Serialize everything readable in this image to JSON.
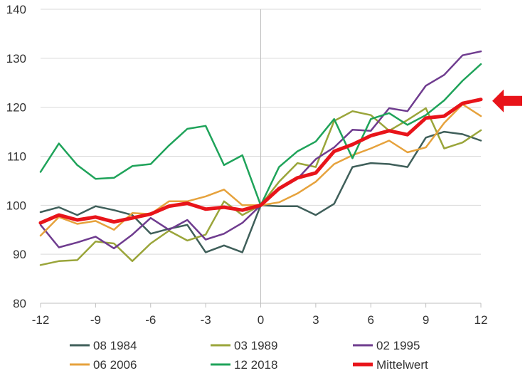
{
  "chart_data": {
    "type": "line",
    "title": "",
    "xlabel": "",
    "ylabel": "",
    "xlim": [
      -12,
      12
    ],
    "ylim": [
      80,
      140
    ],
    "x_ticks": [
      -12,
      -9,
      -6,
      -3,
      0,
      3,
      6,
      9,
      12
    ],
    "y_ticks": [
      80,
      90,
      100,
      110,
      120,
      130,
      140
    ],
    "x_tick_labels": [
      "-12",
      "-9",
      "-6",
      "-3",
      "0",
      "3",
      "6",
      "9",
      "12"
    ],
    "y_tick_labels": [
      "80",
      "90",
      "100",
      "110",
      "120",
      "130",
      "140"
    ],
    "grid": "horizontal",
    "legend_position": "bottom",
    "x": [
      -12,
      -11,
      -10,
      -9,
      -8,
      -7,
      -6,
      -5,
      -4,
      -3,
      -2,
      -1,
      0,
      1,
      2,
      3,
      4,
      5,
      6,
      7,
      8,
      9,
      10,
      11,
      12
    ],
    "series": [
      {
        "name": "08 1984",
        "color": "#3f5f5a",
        "width": 2.5,
        "values": [
          98.6,
          99.6,
          98.0,
          99.8,
          99.0,
          98.0,
          94.2,
          95.2,
          96.0,
          90.4,
          91.8,
          90.4,
          100.0,
          99.8,
          99.8,
          98.0,
          100.3,
          107.8,
          108.6,
          108.4,
          107.8,
          113.8,
          115.0,
          114.5,
          113.2
        ]
      },
      {
        "name": "03 1989",
        "color": "#9aa53a",
        "width": 2.5,
        "values": [
          87.8,
          88.6,
          88.8,
          92.6,
          92.2,
          88.6,
          92.2,
          94.8,
          92.8,
          94.0,
          100.8,
          98.0,
          100.0,
          104.8,
          108.6,
          107.8,
          117.2,
          119.2,
          118.4,
          115.2,
          117.4,
          119.8,
          111.6,
          112.8,
          115.3
        ]
      },
      {
        "name": "02 1995",
        "color": "#6f3c8f",
        "width": 2.5,
        "values": [
          96.0,
          91.4,
          92.4,
          93.6,
          91.2,
          94.0,
          97.4,
          95.0,
          97.0,
          93.0,
          94.2,
          96.4,
          100.0,
          103.2,
          105.4,
          109.4,
          111.8,
          115.4,
          115.2,
          119.8,
          119.2,
          124.4,
          126.6,
          130.6,
          131.4
        ]
      },
      {
        "name": "06 2006",
        "color": "#e6a23c",
        "width": 2.5,
        "values": [
          93.8,
          97.6,
          96.2,
          96.8,
          95.0,
          98.4,
          98.2,
          100.8,
          100.8,
          101.8,
          103.2,
          100.0,
          100.0,
          100.6,
          102.4,
          104.8,
          108.4,
          110.2,
          111.6,
          113.2,
          110.8,
          111.8,
          116.8,
          120.6,
          118.2
        ]
      },
      {
        "name": "12 2018",
        "color": "#1fa35a",
        "width": 2.5,
        "values": [
          106.8,
          112.6,
          108.2,
          105.4,
          105.6,
          108.0,
          108.4,
          112.2,
          115.6,
          116.2,
          108.2,
          110.2,
          100.0,
          107.8,
          111.0,
          113.0,
          117.6,
          109.6,
          117.6,
          118.8,
          116.4,
          118.4,
          121.4,
          125.4,
          128.8
        ]
      },
      {
        "name": "Mittelwert",
        "color": "#e8141a",
        "width": 5,
        "values": [
          96.4,
          98.0,
          97.0,
          97.6,
          96.6,
          97.4,
          98.2,
          99.8,
          100.4,
          99.2,
          99.6,
          99.0,
          100.0,
          103.4,
          105.6,
          106.6,
          111.0,
          112.4,
          114.2,
          115.2,
          114.4,
          117.8,
          118.2,
          120.8,
          121.6
        ]
      }
    ],
    "annotations": [
      {
        "type": "arrow",
        "direction": "left",
        "y": 121.3,
        "color": "#e8141a"
      }
    ]
  }
}
